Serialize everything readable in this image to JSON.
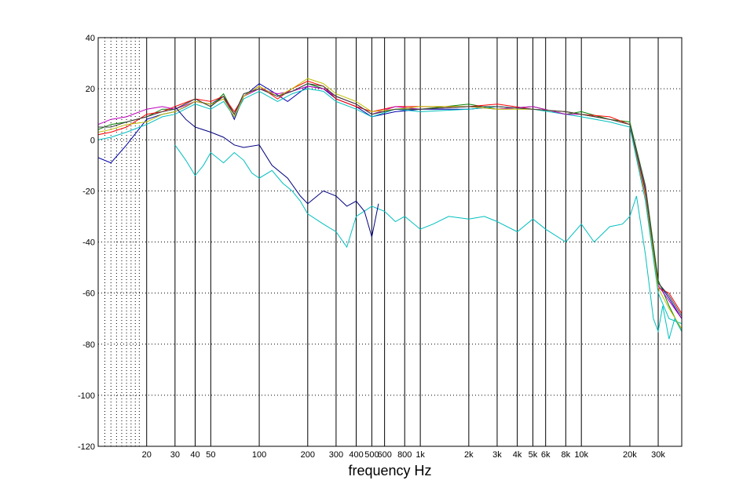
{
  "chart_data": {
    "type": "line",
    "title": "",
    "xlabel": "frequency   Hz",
    "ylabel": "",
    "x_scale": "log",
    "xlim": [
      10,
      42000
    ],
    "ylim": [
      -120,
      40
    ],
    "grid": true,
    "x_major_gridlines": [
      20,
      30,
      40,
      50,
      100,
      200,
      300,
      400,
      500,
      600,
      800,
      1000,
      2000,
      3000,
      4000,
      5000,
      6000,
      8000,
      10000,
      20000,
      30000
    ],
    "x_minor_gridlines": [
      11,
      12,
      13,
      14,
      15,
      16,
      17,
      18
    ],
    "xticks": [
      {
        "value": 20,
        "label": "20"
      },
      {
        "value": 30,
        "label": "30"
      },
      {
        "value": 40,
        "label": "40"
      },
      {
        "value": 50,
        "label": "50"
      },
      {
        "value": 100,
        "label": "100"
      },
      {
        "value": 200,
        "label": "200"
      },
      {
        "value": 300,
        "label": "300"
      },
      {
        "value": 400,
        "label": "400"
      },
      {
        "value": 500,
        "label": "500"
      },
      {
        "value": 600,
        "label": "600"
      },
      {
        "value": 800,
        "label": "800"
      },
      {
        "value": 1000,
        "label": "1k"
      },
      {
        "value": 2000,
        "label": "2k"
      },
      {
        "value": 3000,
        "label": "3k"
      },
      {
        "value": 4000,
        "label": "4k"
      },
      {
        "value": 5000,
        "label": "5k"
      },
      {
        "value": 6000,
        "label": "6k"
      },
      {
        "value": 8000,
        "label": "8k"
      },
      {
        "value": 10000,
        "label": "10k"
      },
      {
        "value": 20000,
        "label": "20k"
      },
      {
        "value": 30000,
        "label": "30k"
      }
    ],
    "yticks": [
      {
        "value": 40,
        "label": "40"
      },
      {
        "value": 20,
        "label": "20"
      },
      {
        "value": 0,
        "label": "0"
      },
      {
        "value": -20,
        "label": "-20"
      },
      {
        "value": -40,
        "label": "-40"
      },
      {
        "value": -60,
        "label": "-60"
      },
      {
        "value": -80,
        "label": "-80"
      },
      {
        "value": -100,
        "label": "-100"
      },
      {
        "value": -120,
        "label": "-120"
      }
    ],
    "series": [
      {
        "color": "#0000aa",
        "points": [
          [
            10,
            -7
          ],
          [
            12,
            -9
          ],
          [
            15,
            -2
          ],
          [
            20,
            8
          ],
          [
            25,
            10
          ],
          [
            30,
            11
          ],
          [
            35,
            13
          ],
          [
            40,
            15
          ],
          [
            50,
            14
          ],
          [
            60,
            17
          ],
          [
            70,
            8
          ],
          [
            80,
            17
          ],
          [
            100,
            22
          ],
          [
            120,
            19
          ],
          [
            150,
            15
          ],
          [
            200,
            21
          ],
          [
            250,
            20
          ],
          [
            300,
            16
          ],
          [
            400,
            13
          ],
          [
            500,
            9
          ],
          [
            700,
            11
          ],
          [
            1000,
            12
          ],
          [
            2000,
            12
          ],
          [
            3000,
            13
          ],
          [
            5000,
            12
          ],
          [
            8000,
            11
          ],
          [
            10000,
            10
          ],
          [
            15000,
            8
          ],
          [
            20000,
            6
          ],
          [
            25000,
            -20
          ],
          [
            30000,
            -56
          ],
          [
            35000,
            -62
          ],
          [
            42000,
            -70
          ]
        ]
      },
      {
        "color": "#008000",
        "points": [
          [
            10,
            4
          ],
          [
            12,
            6
          ],
          [
            15,
            7
          ],
          [
            20,
            9
          ],
          [
            25,
            12
          ],
          [
            30,
            12
          ],
          [
            40,
            16
          ],
          [
            50,
            13
          ],
          [
            60,
            18
          ],
          [
            70,
            10
          ],
          [
            80,
            18
          ],
          [
            100,
            20
          ],
          [
            130,
            17
          ],
          [
            160,
            19
          ],
          [
            200,
            22
          ],
          [
            250,
            20
          ],
          [
            300,
            17
          ],
          [
            400,
            14
          ],
          [
            500,
            10
          ],
          [
            700,
            12
          ],
          [
            1000,
            12
          ],
          [
            2000,
            14
          ],
          [
            3000,
            12
          ],
          [
            5000,
            13
          ],
          [
            8000,
            10
          ],
          [
            10000,
            11
          ],
          [
            15000,
            8
          ],
          [
            20000,
            7
          ],
          [
            25000,
            -18
          ],
          [
            30000,
            -55
          ],
          [
            35000,
            -65
          ],
          [
            42000,
            -75
          ]
        ]
      },
      {
        "color": "#ff0000",
        "points": [
          [
            10,
            2
          ],
          [
            12,
            3
          ],
          [
            15,
            5
          ],
          [
            20,
            10
          ],
          [
            25,
            11
          ],
          [
            30,
            13
          ],
          [
            40,
            16
          ],
          [
            50,
            15
          ],
          [
            60,
            17
          ],
          [
            70,
            11
          ],
          [
            80,
            17
          ],
          [
            100,
            21
          ],
          [
            130,
            16
          ],
          [
            160,
            20
          ],
          [
            200,
            23
          ],
          [
            250,
            21
          ],
          [
            300,
            16
          ],
          [
            400,
            13
          ],
          [
            500,
            11
          ],
          [
            700,
            13
          ],
          [
            1000,
            13
          ],
          [
            2000,
            13
          ],
          [
            3000,
            14
          ],
          [
            5000,
            12
          ],
          [
            8000,
            11
          ],
          [
            10000,
            10
          ],
          [
            15000,
            9
          ],
          [
            20000,
            6
          ],
          [
            25000,
            -22
          ],
          [
            30000,
            -58
          ],
          [
            35000,
            -60
          ],
          [
            42000,
            -68
          ]
        ]
      },
      {
        "color": "#00bfbf",
        "points": [
          [
            10,
            0
          ],
          [
            12,
            1
          ],
          [
            15,
            3
          ],
          [
            20,
            6
          ],
          [
            25,
            9
          ],
          [
            30,
            10
          ],
          [
            40,
            14
          ],
          [
            50,
            12
          ],
          [
            60,
            15
          ],
          [
            70,
            9
          ],
          [
            80,
            16
          ],
          [
            100,
            19
          ],
          [
            130,
            15
          ],
          [
            160,
            18
          ],
          [
            200,
            20
          ],
          [
            250,
            19
          ],
          [
            300,
            15
          ],
          [
            400,
            12
          ],
          [
            500,
            9
          ],
          [
            700,
            12
          ],
          [
            1000,
            11
          ],
          [
            2000,
            12
          ],
          [
            3000,
            13
          ],
          [
            5000,
            12
          ],
          [
            8000,
            10
          ],
          [
            10000,
            9
          ],
          [
            15000,
            7
          ],
          [
            20000,
            5
          ],
          [
            25000,
            -24
          ],
          [
            30000,
            -60
          ],
          [
            35000,
            -70
          ],
          [
            42000,
            -72
          ]
        ]
      },
      {
        "color": "#bf00bf",
        "points": [
          [
            10,
            6
          ],
          [
            12,
            8
          ],
          [
            15,
            9
          ],
          [
            20,
            12
          ],
          [
            25,
            13
          ],
          [
            30,
            12
          ],
          [
            40,
            15
          ],
          [
            50,
            14
          ],
          [
            60,
            16
          ],
          [
            70,
            10
          ],
          [
            80,
            17
          ],
          [
            100,
            20
          ],
          [
            130,
            18
          ],
          [
            160,
            19
          ],
          [
            200,
            21
          ],
          [
            250,
            20
          ],
          [
            300,
            17
          ],
          [
            400,
            14
          ],
          [
            500,
            10
          ],
          [
            700,
            13
          ],
          [
            1000,
            12
          ],
          [
            2000,
            13
          ],
          [
            3000,
            12
          ],
          [
            5000,
            13
          ],
          [
            8000,
            10
          ],
          [
            10000,
            10
          ],
          [
            15000,
            8
          ],
          [
            20000,
            6
          ],
          [
            25000,
            -19
          ],
          [
            30000,
            -57
          ],
          [
            35000,
            -63
          ],
          [
            42000,
            -70
          ]
        ]
      },
      {
        "color": "#bfbf00",
        "points": [
          [
            10,
            3
          ],
          [
            12,
            4
          ],
          [
            15,
            6
          ],
          [
            20,
            7
          ],
          [
            25,
            10
          ],
          [
            30,
            11
          ],
          [
            40,
            15
          ],
          [
            50,
            14
          ],
          [
            60,
            16
          ],
          [
            70,
            9
          ],
          [
            80,
            17
          ],
          [
            100,
            21
          ],
          [
            130,
            17
          ],
          [
            160,
            20
          ],
          [
            200,
            24
          ],
          [
            250,
            22
          ],
          [
            300,
            18
          ],
          [
            400,
            15
          ],
          [
            500,
            11
          ],
          [
            700,
            12
          ],
          [
            1000,
            13
          ],
          [
            2000,
            13
          ],
          [
            3000,
            12
          ],
          [
            5000,
            12
          ],
          [
            8000,
            11
          ],
          [
            10000,
            10
          ],
          [
            15000,
            8
          ],
          [
            20000,
            6
          ],
          [
            25000,
            -21
          ],
          [
            30000,
            -58
          ],
          [
            35000,
            -66
          ],
          [
            42000,
            -74
          ]
        ]
      },
      {
        "color": "#404040",
        "points": [
          [
            10,
            5
          ],
          [
            12,
            5
          ],
          [
            15,
            7
          ],
          [
            20,
            9
          ],
          [
            25,
            11
          ],
          [
            30,
            12
          ],
          [
            40,
            16
          ],
          [
            50,
            13
          ],
          [
            60,
            17
          ],
          [
            70,
            10
          ],
          [
            80,
            18
          ],
          [
            100,
            20
          ],
          [
            130,
            17
          ],
          [
            160,
            19
          ],
          [
            200,
            22
          ],
          [
            250,
            21
          ],
          [
            300,
            17
          ],
          [
            400,
            14
          ],
          [
            500,
            10
          ],
          [
            700,
            12
          ],
          [
            1000,
            12
          ],
          [
            2000,
            13
          ],
          [
            3000,
            13
          ],
          [
            5000,
            12
          ],
          [
            8000,
            11
          ],
          [
            10000,
            10
          ],
          [
            15000,
            8
          ],
          [
            20000,
            6
          ],
          [
            25000,
            -20
          ],
          [
            30000,
            -56
          ],
          [
            35000,
            -61
          ],
          [
            42000,
            -69
          ]
        ]
      },
      {
        "color": "#00bfbf",
        "points": [
          [
            30,
            -2
          ],
          [
            35,
            -8
          ],
          [
            40,
            -14
          ],
          [
            45,
            -10
          ],
          [
            50,
            -5
          ],
          [
            60,
            -9
          ],
          [
            70,
            -5
          ],
          [
            80,
            -8
          ],
          [
            90,
            -13
          ],
          [
            100,
            -15
          ],
          [
            120,
            -12
          ],
          [
            140,
            -17
          ],
          [
            160,
            -20
          ],
          [
            180,
            -24
          ],
          [
            200,
            -29
          ],
          [
            250,
            -33
          ],
          [
            300,
            -36
          ],
          [
            350,
            -42
          ],
          [
            400,
            -30
          ],
          [
            500,
            -26
          ],
          [
            600,
            -28
          ],
          [
            700,
            -32
          ],
          [
            800,
            -30
          ],
          [
            1000,
            -35
          ],
          [
            1200,
            -33
          ],
          [
            1500,
            -30
          ],
          [
            2000,
            -31
          ],
          [
            2500,
            -30
          ],
          [
            3000,
            -32
          ],
          [
            4000,
            -36
          ],
          [
            5000,
            -31
          ],
          [
            6000,
            -35
          ],
          [
            8000,
            -40
          ],
          [
            10000,
            -33
          ],
          [
            12000,
            -40
          ],
          [
            15000,
            -34
          ],
          [
            18000,
            -33
          ],
          [
            20000,
            -30
          ],
          [
            22000,
            -22
          ],
          [
            25000,
            -45
          ],
          [
            28000,
            -70
          ],
          [
            30000,
            -75
          ],
          [
            32000,
            -65
          ],
          [
            35000,
            -78
          ],
          [
            38000,
            -70
          ],
          [
            42000,
            -75
          ]
        ]
      },
      {
        "color": "#000080",
        "points": [
          [
            30,
            13
          ],
          [
            35,
            8
          ],
          [
            40,
            5
          ],
          [
            50,
            3
          ],
          [
            60,
            1
          ],
          [
            70,
            -2
          ],
          [
            80,
            -3
          ],
          [
            100,
            -2
          ],
          [
            120,
            -10
          ],
          [
            150,
            -15
          ],
          [
            180,
            -22
          ],
          [
            200,
            -25
          ],
          [
            250,
            -20
          ],
          [
            300,
            -22
          ],
          [
            350,
            -26
          ],
          [
            400,
            -24
          ],
          [
            450,
            -28
          ],
          [
            500,
            -38
          ],
          [
            550,
            -25
          ]
        ]
      }
    ]
  }
}
